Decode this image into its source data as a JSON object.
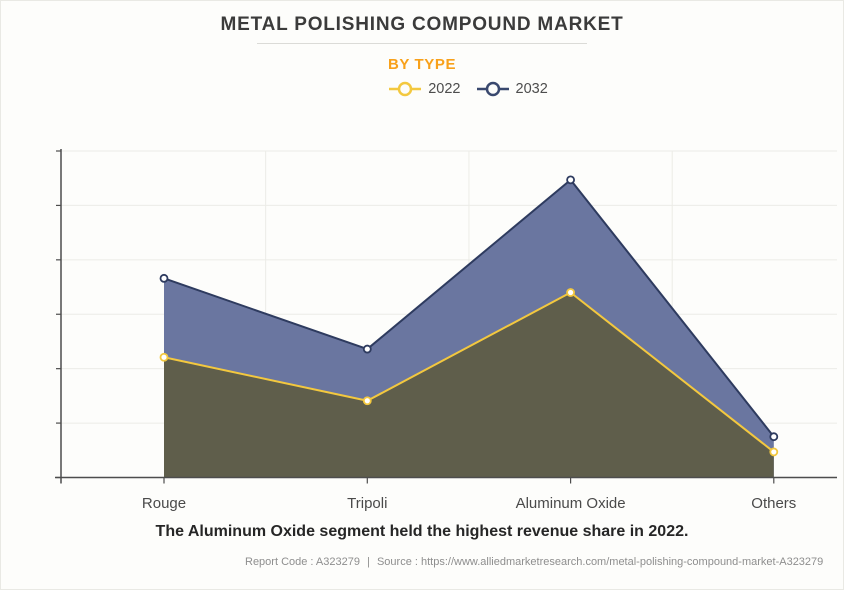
{
  "header": {
    "title": "METAL POLISHING COMPOUND MARKET",
    "subtitle": "BY TYPE",
    "subtitle_color": "#F8A11B"
  },
  "legend": {
    "items": [
      {
        "label": "2022",
        "color": "#F3C83F"
      },
      {
        "label": "2032",
        "color": "#39486E"
      }
    ]
  },
  "chart_data": {
    "type": "area",
    "categories": [
      "Rouge",
      "Tripoli",
      "Aluminum Oxide",
      "Others"
    ],
    "series": [
      {
        "name": "2032",
        "values": [
          3.66,
          2.36,
          5.47,
          0.75
        ],
        "line_color": "#2E3B5F",
        "fill_color": "#6A76A0",
        "marker": "open-circle"
      },
      {
        "name": "2022",
        "values": [
          2.21,
          1.41,
          3.4,
          0.47
        ],
        "line_color": "#F3C83F",
        "fill_color": "#5F5E4B",
        "marker": "open-circle"
      }
    ],
    "title": "METAL POLISHING COMPOUND MARKET",
    "subtitle": "BY TYPE",
    "xlabel": "",
    "ylabel": "",
    "ylim": [
      0,
      6
    ],
    "y_axis_labels_visible": false,
    "y_tick_count": 7,
    "grid": true,
    "grid_color": "#ececе7",
    "axis_color": "#4d4d4d",
    "category_label_color": "#4a4a4a",
    "legend_position": "top",
    "note": "y axis has unlabeled ticks; values are relative units estimated from gridlines"
  },
  "caption": "The Aluminum Oxide segment held the highest revenue share in 2022.",
  "footer": {
    "report_code": "Report Code : A323279",
    "separator": "|",
    "source": "Source : https://www.alliedmarketresearch.com/metal-polishing-compound-market-A323279"
  }
}
